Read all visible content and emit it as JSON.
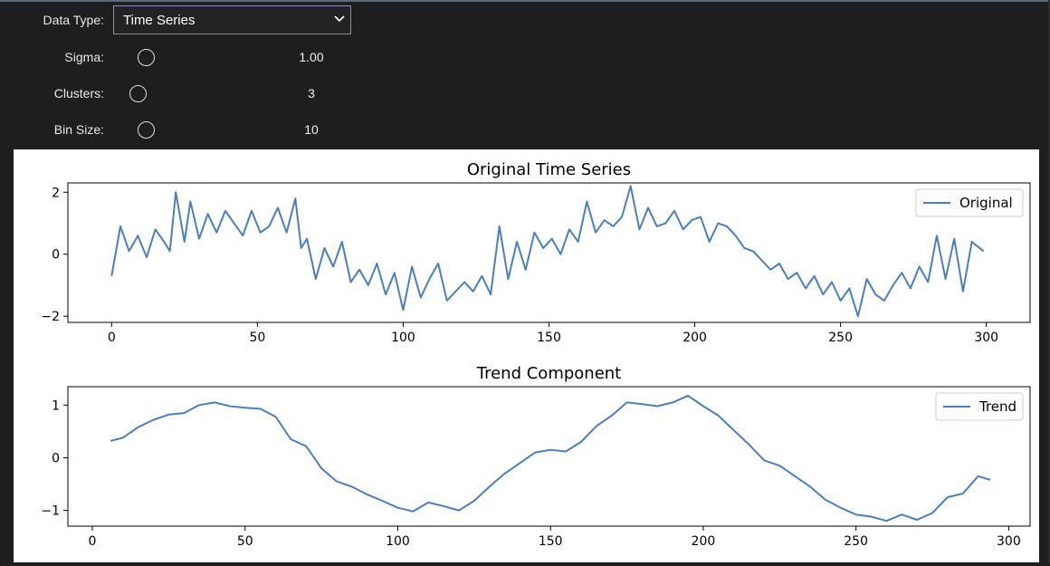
{
  "controls": {
    "data_type": {
      "label": "Data Type:",
      "value": "Time Series"
    },
    "sigma": {
      "label": "Sigma:",
      "value": "1.00"
    },
    "clusters": {
      "label": "Clusters:",
      "value": "3"
    },
    "bin_size": {
      "label": "Bin Size:",
      "value": "10"
    }
  },
  "colors": {
    "line": "#4a7fbe",
    "background": "#1e1e1e",
    "figure": "#ffffff"
  },
  "chart_data": [
    {
      "type": "line",
      "title": "Original Time Series",
      "xlabel": "",
      "ylabel": "",
      "xlim": [
        -15,
        315
      ],
      "ylim": [
        -2.2,
        2.3
      ],
      "xticks": [
        0,
        50,
        100,
        150,
        200,
        250,
        300
      ],
      "yticks": [
        -2,
        0,
        2
      ],
      "legend": "top-right",
      "grid": false,
      "series": [
        {
          "name": "Original",
          "x": [
            0,
            3,
            6,
            9,
            12,
            15,
            18,
            20,
            22,
            25,
            27,
            30,
            33,
            36,
            39,
            42,
            45,
            48,
            51,
            54,
            57,
            60,
            63,
            65,
            67,
            70,
            73,
            76,
            79,
            82,
            85,
            88,
            91,
            94,
            97,
            100,
            103,
            106,
            109,
            112,
            115,
            118,
            121,
            124,
            127,
            130,
            133,
            136,
            139,
            142,
            145,
            148,
            151,
            154,
            157,
            160,
            163,
            166,
            169,
            172,
            175,
            178,
            181,
            184,
            187,
            190,
            193,
            196,
            199,
            202,
            205,
            208,
            211,
            214,
            217,
            220,
            223,
            226,
            229,
            232,
            235,
            238,
            241,
            244,
            247,
            250,
            253,
            256,
            259,
            262,
            265,
            268,
            271,
            274,
            277,
            280,
            283,
            286,
            289,
            292,
            295,
            299
          ],
          "y": [
            -0.7,
            0.9,
            0.1,
            0.6,
            -0.1,
            0.8,
            0.4,
            0.1,
            2.0,
            0.4,
            1.7,
            0.5,
            1.3,
            0.7,
            1.4,
            1.0,
            0.6,
            1.4,
            0.7,
            0.9,
            1.5,
            0.7,
            1.8,
            0.2,
            0.5,
            -0.8,
            0.2,
            -0.4,
            0.4,
            -0.9,
            -0.5,
            -1.0,
            -0.3,
            -1.3,
            -0.6,
            -1.8,
            -0.4,
            -1.4,
            -0.8,
            -0.3,
            -1.5,
            -1.2,
            -0.9,
            -1.2,
            -0.7,
            -1.3,
            0.9,
            -0.8,
            0.4,
            -0.5,
            0.7,
            0.2,
            0.5,
            0.0,
            0.8,
            0.4,
            1.7,
            0.7,
            1.1,
            0.9,
            1.2,
            2.2,
            0.8,
            1.5,
            0.9,
            1.0,
            1.4,
            0.8,
            1.1,
            1.2,
            0.4,
            1.0,
            0.9,
            0.6,
            0.2,
            0.1,
            -0.2,
            -0.5,
            -0.3,
            -0.8,
            -0.6,
            -1.1,
            -0.7,
            -1.3,
            -0.9,
            -1.5,
            -1.1,
            -2.0,
            -0.8,
            -1.3,
            -1.5,
            -1.0,
            -0.6,
            -1.1,
            -0.4,
            -0.9,
            0.6,
            -0.8,
            0.5,
            -1.2,
            0.4,
            0.1
          ]
        }
      ]
    },
    {
      "type": "line",
      "title": "Trend Component",
      "xlabel": "",
      "ylabel": "",
      "xlim": [
        -8,
        307
      ],
      "ylim": [
        -1.3,
        1.35
      ],
      "xticks": [
        0,
        50,
        100,
        150,
        200,
        250,
        300
      ],
      "yticks": [
        -1,
        0,
        1
      ],
      "legend": "top-right",
      "grid": false,
      "series": [
        {
          "name": "Trend",
          "x": [
            6,
            10,
            15,
            20,
            25,
            30,
            35,
            40,
            45,
            50,
            55,
            60,
            65,
            70,
            75,
            80,
            85,
            90,
            95,
            100,
            105,
            110,
            115,
            120,
            125,
            130,
            135,
            140,
            145,
            150,
            155,
            160,
            165,
            170,
            175,
            180,
            185,
            190,
            195,
            200,
            205,
            210,
            215,
            220,
            225,
            230,
            235,
            240,
            245,
            250,
            255,
            260,
            265,
            270,
            275,
            280,
            285,
            290,
            294
          ],
          "y": [
            0.32,
            0.38,
            0.58,
            0.72,
            0.82,
            0.85,
            1.0,
            1.05,
            0.98,
            0.95,
            0.93,
            0.78,
            0.35,
            0.22,
            -0.2,
            -0.45,
            -0.55,
            -0.7,
            -0.82,
            -0.95,
            -1.02,
            -0.85,
            -0.92,
            -1.0,
            -0.82,
            -0.55,
            -0.3,
            -0.1,
            0.1,
            0.15,
            0.12,
            0.3,
            0.6,
            0.8,
            1.05,
            1.02,
            0.98,
            1.05,
            1.18,
            0.98,
            0.8,
            0.52,
            0.25,
            -0.05,
            -0.15,
            -0.35,
            -0.55,
            -0.8,
            -0.95,
            -1.08,
            -1.12,
            -1.2,
            -1.08,
            -1.18,
            -1.05,
            -0.75,
            -0.68,
            -0.35,
            -0.42
          ]
        }
      ]
    }
  ]
}
